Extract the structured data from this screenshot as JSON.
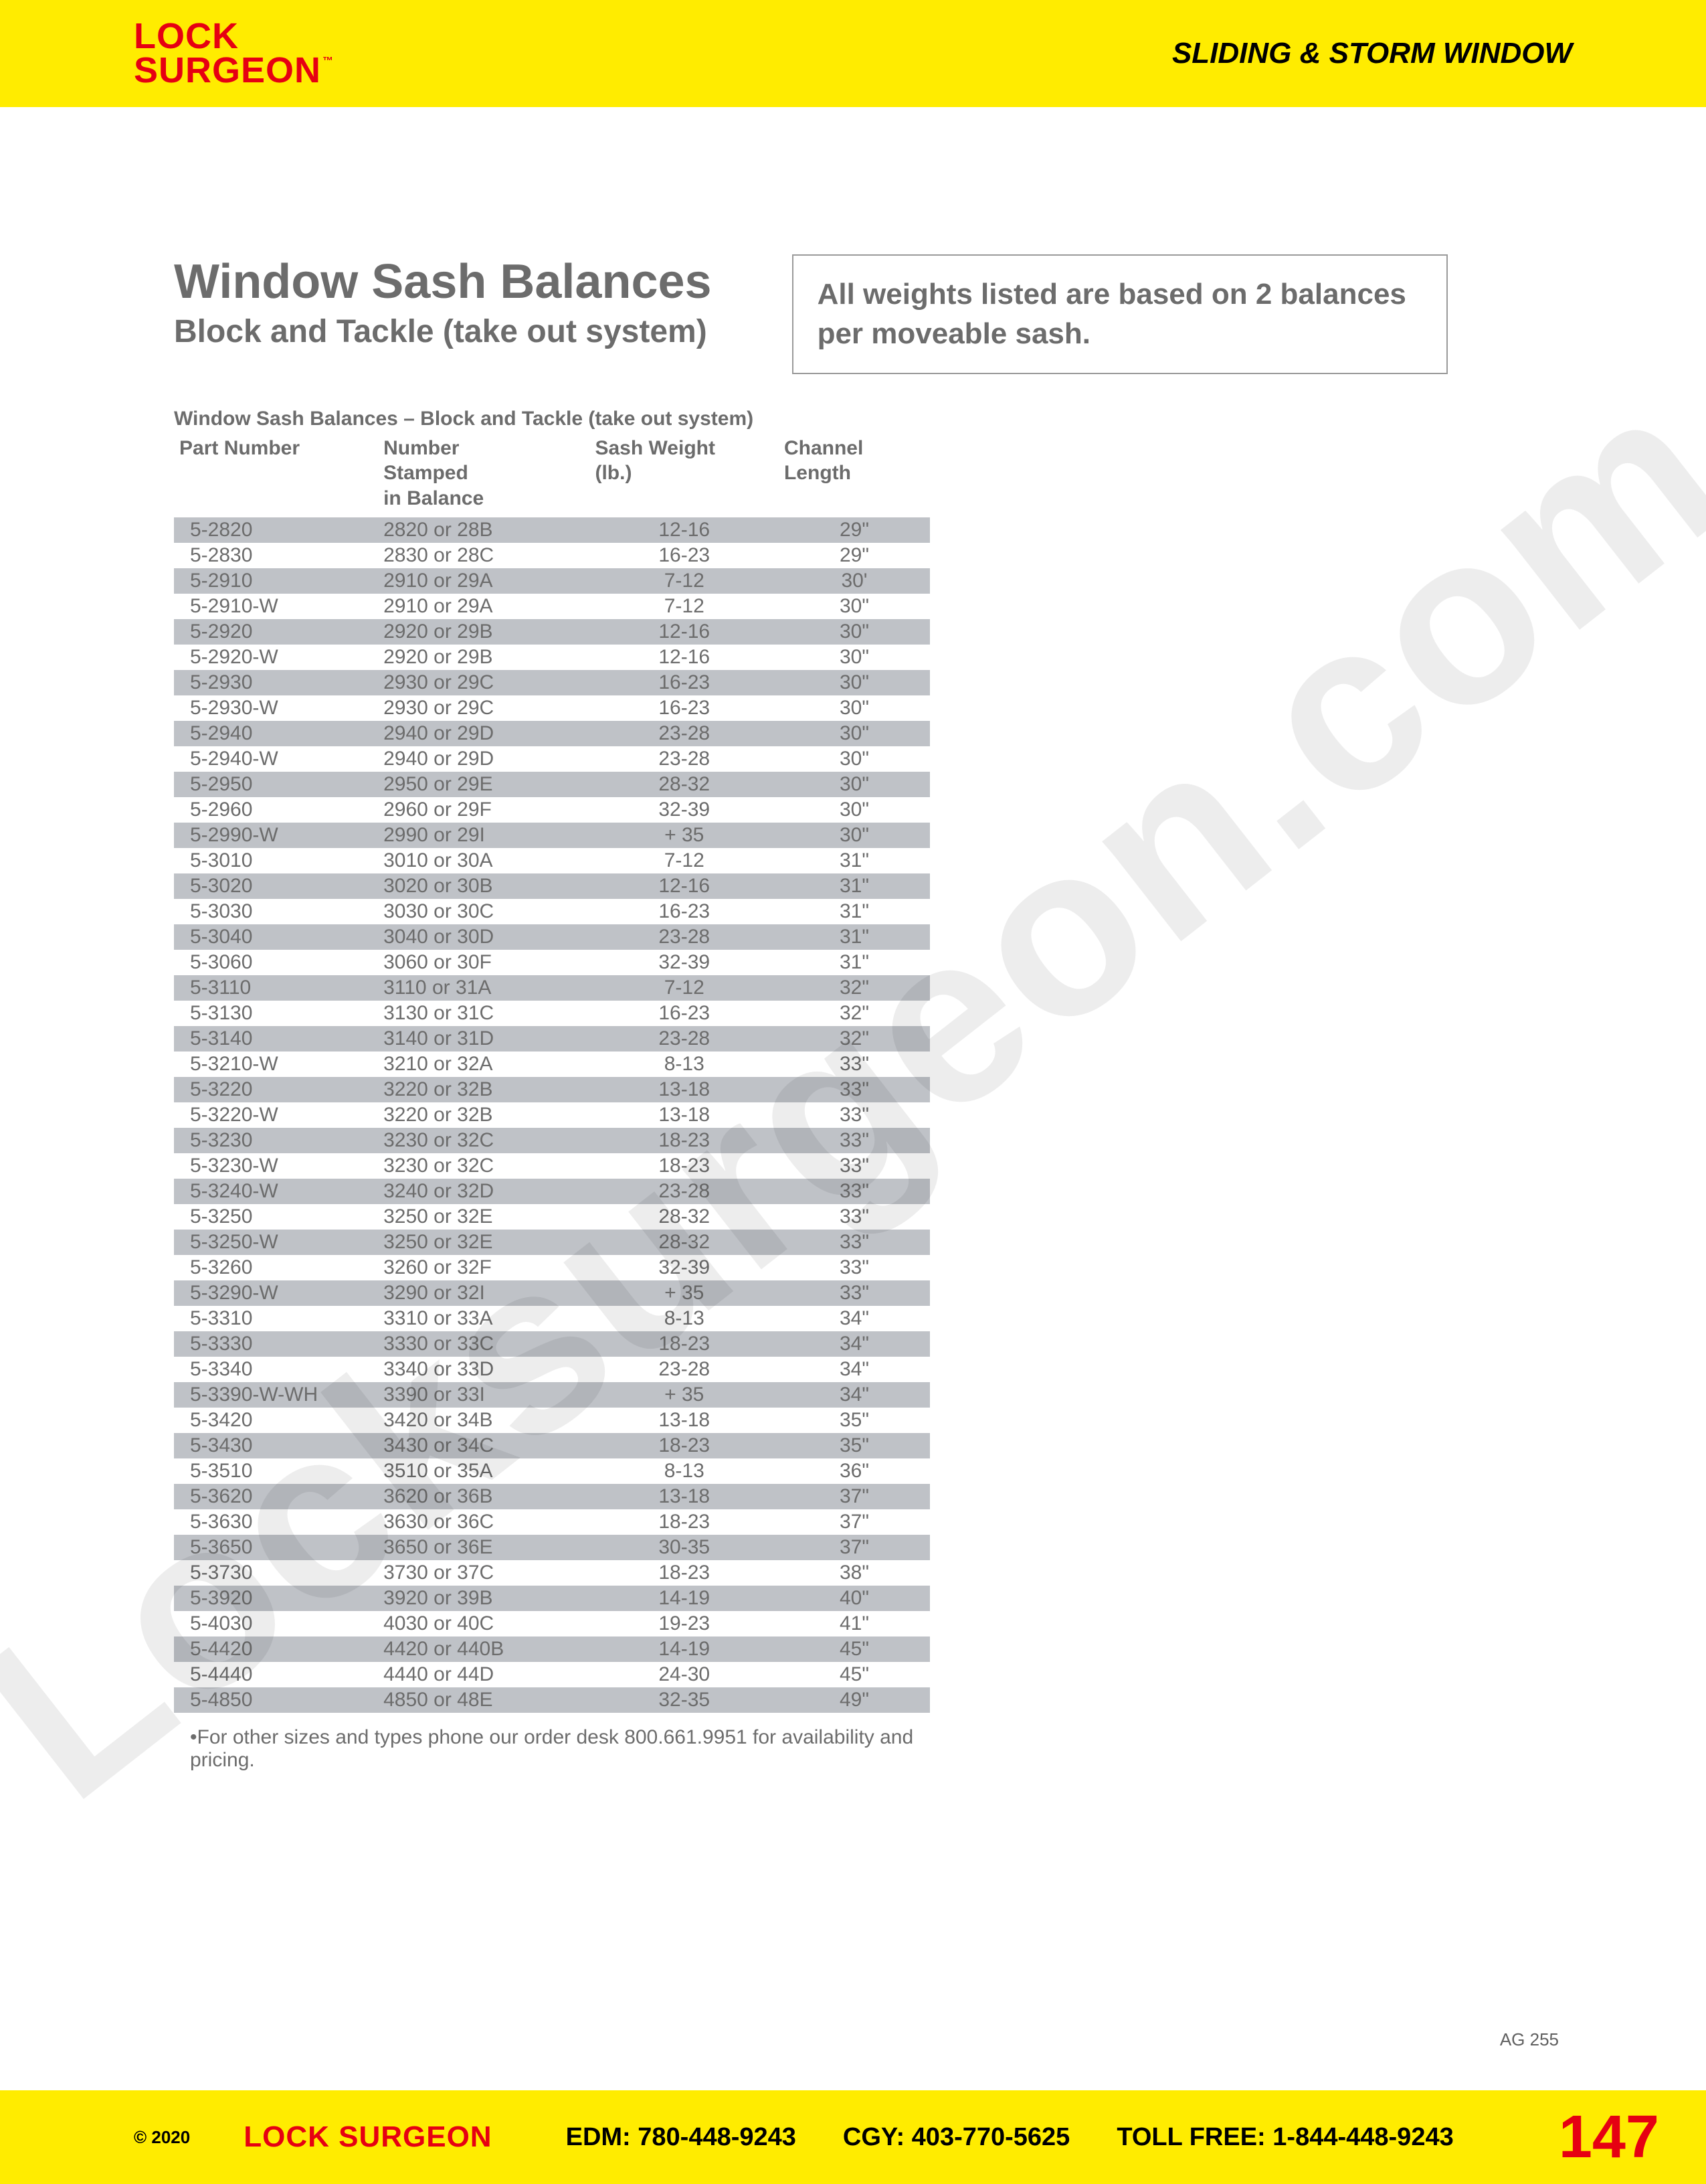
{
  "header": {
    "logo_line1": "LOCK",
    "logo_line2": "SURGEON",
    "logo_tm": "™",
    "category": "SLIDING & STORM WINDOW"
  },
  "watermark": "Locksurgeon.com",
  "main": {
    "title": "Window Sash Balances",
    "subtitle": "Block and Tackle (take out system)",
    "note": "All weights listed are based on 2 balances per moveable sash."
  },
  "table": {
    "caption": "Window Sash Balances – Block and Tackle (take out system)",
    "columns": [
      "Part Number",
      "Number Stamped in Balance",
      "Sash Weight (lb.)",
      "Channel Length"
    ],
    "col_widths_pct": [
      27,
      28,
      25,
      20
    ],
    "row_shade_color": "#bfc2c7",
    "text_color": "#6c6c6c",
    "font_size_pt": 11,
    "rows": [
      [
        "5-2820",
        "2820 or 28B",
        "12-16",
        "29\""
      ],
      [
        "5-2830",
        "2830 or 28C",
        "16-23",
        "29\""
      ],
      [
        "5-2910",
        "2910 or 29A",
        "7-12",
        "30'"
      ],
      [
        "5-2910-W",
        "2910 or 29A",
        "7-12",
        "30\""
      ],
      [
        "5-2920",
        "2920 or 29B",
        "12-16",
        "30\""
      ],
      [
        "5-2920-W",
        "2920 or 29B",
        "12-16",
        "30\""
      ],
      [
        "5-2930",
        "2930 or 29C",
        "16-23",
        "30\""
      ],
      [
        "5-2930-W",
        "2930 or 29C",
        "16-23",
        "30\""
      ],
      [
        "5-2940",
        "2940 or 29D",
        "23-28",
        "30\""
      ],
      [
        "5-2940-W",
        "2940 or 29D",
        "23-28",
        "30\""
      ],
      [
        "5-2950",
        "2950 or 29E",
        "28-32",
        "30\""
      ],
      [
        "5-2960",
        "2960 or 29F",
        "32-39",
        "30\""
      ],
      [
        "5-2990-W",
        "2990 or 29I",
        "+ 35",
        "30\""
      ],
      [
        "5-3010",
        "3010 or 30A",
        "7-12",
        "31\""
      ],
      [
        "5-3020",
        "3020 or 30B",
        "12-16",
        "31\""
      ],
      [
        "5-3030",
        "3030 or 30C",
        "16-23",
        "31\""
      ],
      [
        "5-3040",
        "3040 or 30D",
        "23-28",
        "31\""
      ],
      [
        "5-3060",
        "3060 or 30F",
        "32-39",
        "31\""
      ],
      [
        "5-3110",
        "3110 or 31A",
        "7-12",
        "32\""
      ],
      [
        "5-3130",
        "3130 or 31C",
        "16-23",
        "32\""
      ],
      [
        "5-3140",
        "3140 or 31D",
        "23-28",
        "32\""
      ],
      [
        "5-3210-W",
        "3210 or 32A",
        "8-13",
        "33\""
      ],
      [
        "5-3220",
        "3220 or 32B",
        "13-18",
        "33\""
      ],
      [
        "5-3220-W",
        "3220 or 32B",
        "13-18",
        "33\""
      ],
      [
        "5-3230",
        "3230 or 32C",
        "18-23",
        "33\""
      ],
      [
        "5-3230-W",
        "3230 or 32C",
        "18-23",
        "33\""
      ],
      [
        "5-3240-W",
        "3240 or 32D",
        "23-28",
        "33\""
      ],
      [
        "5-3250",
        "3250 or 32E",
        "28-32",
        "33\""
      ],
      [
        "5-3250-W",
        "3250 or 32E",
        "28-32",
        "33\""
      ],
      [
        "5-3260",
        "3260 or 32F",
        "32-39",
        "33\""
      ],
      [
        "5-3290-W",
        "3290 or 32I",
        "+ 35",
        "33\""
      ],
      [
        "5-3310",
        "3310 or 33A",
        "8-13",
        "34\""
      ],
      [
        "5-3330",
        "3330 or 33C",
        "18-23",
        "34\""
      ],
      [
        "5-3340",
        "3340 or 33D",
        "23-28",
        "34\""
      ],
      [
        "5-3390-W-WH",
        "3390 or 33I",
        "+ 35",
        "34\""
      ],
      [
        "5-3420",
        "3420 or 34B",
        "13-18",
        "35\""
      ],
      [
        "5-3430",
        "3430 or 34C",
        "18-23",
        "35\""
      ],
      [
        "5-3510",
        "3510 or 35A",
        "8-13",
        "36\""
      ],
      [
        "5-3620",
        "3620 or 36B",
        "13-18",
        "37\""
      ],
      [
        "5-3630",
        "3630 or 36C",
        "18-23",
        "37\""
      ],
      [
        "5-3650",
        "3650 or 36E",
        "30-35",
        "37\""
      ],
      [
        "5-3730",
        "3730 or 37C",
        "18-23",
        "38\""
      ],
      [
        "5-3920",
        "3920 or 39B",
        "14-19",
        "40\""
      ],
      [
        "5-4030",
        "4030 or 40C",
        "19-23",
        "41\""
      ],
      [
        "5-4420",
        "4420 or 440B",
        "14-19",
        "45\""
      ],
      [
        "5-4440",
        "4440 or 44D",
        "24-30",
        "45\""
      ],
      [
        "5-4850",
        "4850 or 48E",
        "32-35",
        "49\""
      ]
    ],
    "footnote": "•For other sizes and types phone our order desk 800.661.9951 for availability and pricing."
  },
  "page_code": "AG 255",
  "footer": {
    "copyright": "© 2020",
    "brand": "LOCK SURGEON",
    "edm_label": "EDM:",
    "edm_phone": "780-448-9243",
    "cgy_label": "CGY:",
    "cgy_phone": "403-770-5625",
    "toll_label": "TOLL FREE:",
    "toll_phone": "1-844-448-9243",
    "page_number": "147"
  },
  "colors": {
    "yellow": "#ffec00",
    "red": "#e60012",
    "text_gray": "#6c6c6c",
    "shade": "#bfc2c7",
    "border_gray": "#9a9a9a",
    "background": "#ffffff"
  }
}
